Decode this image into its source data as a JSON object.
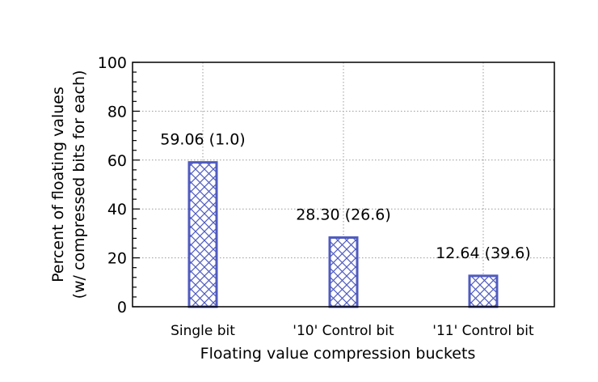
{
  "chart_data": {
    "type": "bar",
    "categories": [
      "Single bit",
      "'10' Control bit",
      "'11' Control bit"
    ],
    "values": [
      59.06,
      28.3,
      12.64
    ],
    "data_labels": [
      "59.06 (1.0)",
      "28.30 (26.6)",
      "12.64 (39.6)"
    ],
    "xlabel": "Floating value compression buckets",
    "ylabel_lines": [
      "Percent of floating values",
      "(w/ compressed bits for each)"
    ],
    "ylim": [
      0,
      100
    ],
    "yticks": [
      0,
      20,
      40,
      60,
      80,
      100
    ],
    "grid": true,
    "bar_fill": "crosshatch",
    "colors": {
      "bar": "#4f5bbf",
      "grid": "#9a9a9a",
      "axis": "#000000"
    }
  }
}
